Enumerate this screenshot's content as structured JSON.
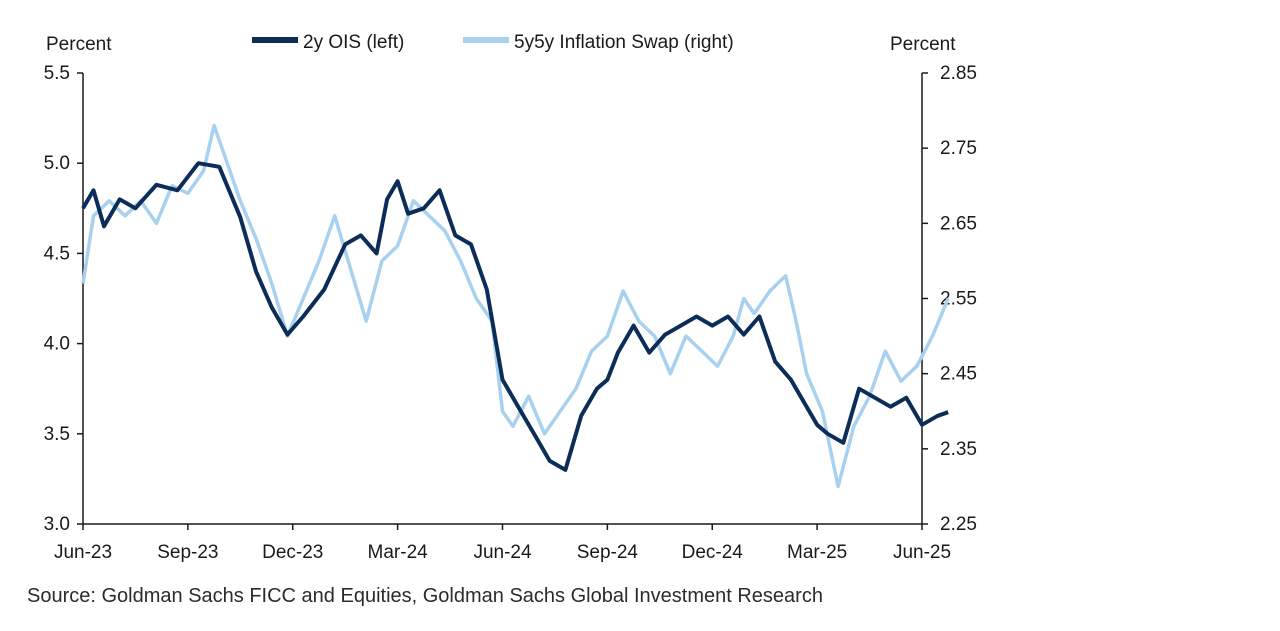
{
  "chart_data": {
    "type": "line",
    "left_axis_label": "Percent",
    "right_axis_label": "Percent",
    "left_ylim": [
      3.0,
      5.5
    ],
    "left_ticks": [
      "5.5",
      "5.0",
      "4.5",
      "4.0",
      "3.5",
      "3.0"
    ],
    "right_ylim": [
      2.25,
      2.85
    ],
    "right_ticks": [
      "2.85",
      "2.75",
      "2.65",
      "2.55",
      "2.45",
      "2.35",
      "2.25"
    ],
    "x_ticks": [
      "Jun-23",
      "Sep-23",
      "Dec-23",
      "Mar-24",
      "Jun-24",
      "Sep-24",
      "Dec-24",
      "Mar-25",
      "Jun-25"
    ],
    "grid": false,
    "legend_position": "top",
    "series": [
      {
        "name": "2y OIS (left)",
        "axis": "left",
        "color": "#0b2d57",
        "x": [
          0.0,
          0.1,
          0.2,
          0.35,
          0.5,
          0.7,
          0.9,
          1.1,
          1.3,
          1.5,
          1.65,
          1.8,
          1.95,
          2.1,
          2.3,
          2.5,
          2.65,
          2.8,
          2.9,
          3.0,
          3.1,
          3.25,
          3.4,
          3.55,
          3.7,
          3.85,
          4.0,
          4.15,
          4.3,
          4.45,
          4.6,
          4.75,
          4.9,
          5.0,
          5.1,
          5.25,
          5.4,
          5.55,
          5.7,
          5.85,
          6.0,
          6.15,
          6.3,
          6.45,
          6.6,
          6.75,
          6.9,
          7.0,
          7.1,
          7.25,
          7.4,
          7.55,
          7.7,
          7.85,
          8.0,
          8.15,
          8.25
        ],
        "y": [
          4.75,
          4.85,
          4.65,
          4.8,
          4.75,
          4.88,
          4.85,
          5.0,
          4.98,
          4.7,
          4.4,
          4.2,
          4.05,
          4.15,
          4.3,
          4.55,
          4.6,
          4.5,
          4.8,
          4.9,
          4.72,
          4.75,
          4.85,
          4.6,
          4.55,
          4.3,
          3.8,
          3.65,
          3.5,
          3.35,
          3.3,
          3.6,
          3.75,
          3.8,
          3.95,
          4.1,
          3.95,
          4.05,
          4.1,
          4.15,
          4.1,
          4.15,
          4.05,
          4.15,
          3.9,
          3.8,
          3.65,
          3.55,
          3.5,
          3.45,
          3.75,
          3.7,
          3.65,
          3.7,
          3.55,
          3.6,
          3.62
        ]
      },
      {
        "name": "5y5y Inflation Swap (right)",
        "axis": "right",
        "color": "#a8d0ef",
        "x": [
          0.0,
          0.1,
          0.25,
          0.4,
          0.55,
          0.7,
          0.85,
          1.0,
          1.15,
          1.25,
          1.35,
          1.5,
          1.65,
          1.8,
          1.95,
          2.1,
          2.25,
          2.4,
          2.55,
          2.7,
          2.85,
          3.0,
          3.15,
          3.3,
          3.45,
          3.6,
          3.75,
          3.9,
          4.0,
          4.1,
          4.25,
          4.4,
          4.55,
          4.7,
          4.85,
          5.0,
          5.15,
          5.3,
          5.45,
          5.6,
          5.75,
          5.9,
          6.05,
          6.2,
          6.3,
          6.4,
          6.55,
          6.7,
          6.8,
          6.9,
          7.05,
          7.2,
          7.35,
          7.5,
          7.65,
          7.8,
          7.95,
          8.1,
          8.25
        ],
        "y": [
          2.57,
          2.66,
          2.68,
          2.66,
          2.68,
          2.65,
          2.7,
          2.69,
          2.72,
          2.78,
          2.74,
          2.68,
          2.63,
          2.57,
          2.5,
          2.55,
          2.6,
          2.66,
          2.59,
          2.52,
          2.6,
          2.62,
          2.68,
          2.66,
          2.64,
          2.6,
          2.55,
          2.52,
          2.4,
          2.38,
          2.42,
          2.37,
          2.4,
          2.43,
          2.48,
          2.5,
          2.56,
          2.52,
          2.5,
          2.45,
          2.5,
          2.48,
          2.46,
          2.5,
          2.55,
          2.53,
          2.56,
          2.58,
          2.52,
          2.45,
          2.4,
          2.3,
          2.38,
          2.42,
          2.48,
          2.44,
          2.46,
          2.5,
          2.55
        ]
      }
    ]
  },
  "source_note": "Source: Goldman Sachs FICC and Equities, Goldman Sachs Global Investment Research"
}
